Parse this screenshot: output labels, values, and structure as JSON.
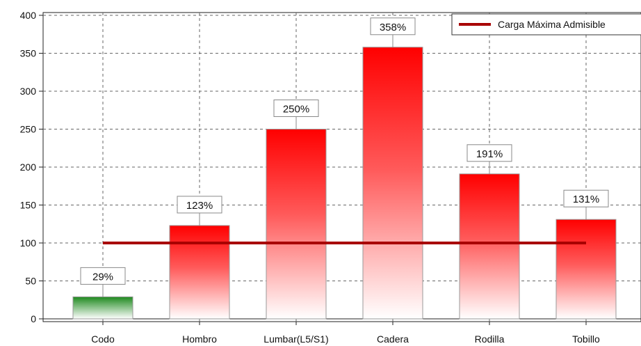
{
  "chart_data": {
    "type": "bar",
    "categories": [
      "Codo",
      "Hombro",
      "Lumbar(L5/S1)",
      "Cadera",
      "Rodilla",
      "Tobillo"
    ],
    "values": [
      29,
      123,
      250,
      358,
      191,
      131
    ],
    "data_labels": [
      "29%",
      "123%",
      "250%",
      "358%",
      "191%",
      "131%"
    ],
    "ylim": [
      0,
      400
    ],
    "yticks": [
      0,
      50,
      100,
      150,
      200,
      250,
      300,
      350,
      400
    ],
    "ytick_labels": [
      "0",
      "50",
      "100",
      "150",
      "200",
      "250",
      "300",
      "350",
      "400"
    ],
    "reference_line": {
      "name": "Carga Máxima Admisible",
      "value": 100
    },
    "legend": {
      "label": "Carga Máxima Admisible",
      "position": "top-right"
    },
    "grid": true,
    "colors": {
      "over_limit_top": "#ff0000",
      "over_limit_bottom": "#ffffff",
      "under_limit_top": "#1f8a1f",
      "under_limit_bottom": "#ffffff",
      "reference_line": "#a80000"
    }
  }
}
